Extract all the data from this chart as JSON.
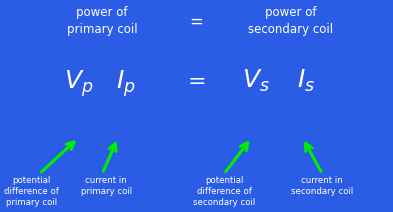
{
  "bg_color": "#2b5ce6",
  "text_color": "#ffffff",
  "arrow_color": "#00ee00",
  "top_left_text": "power of\nprimary coil",
  "top_equals": "=",
  "top_right_text": "power of\nsecondary coil",
  "label1": "potential\ndifference of\nprimary coil",
  "label2": "current in\nprimary coil",
  "label3": "potential\ndifference of\nsecondary coil",
  "label4": "current in\nsecondary coil",
  "figsize": [
    3.93,
    2.12
  ],
  "dpi": 100
}
